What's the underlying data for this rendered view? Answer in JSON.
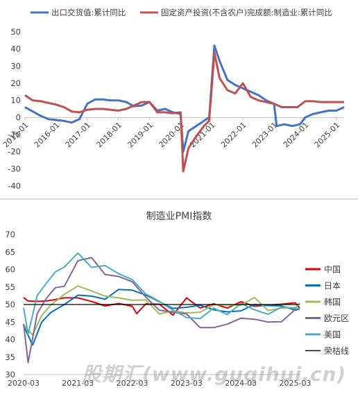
{
  "chart_data": [
    {
      "type": "line",
      "title": "",
      "xlabel": "",
      "ylabel": "",
      "ylim": [
        -40,
        50
      ],
      "yticks": [
        -40,
        -30,
        -20,
        -10,
        0,
        10,
        20,
        30,
        40,
        50
      ],
      "x_tick_labels": [
        "2015-01",
        "2016-01",
        "2017-01",
        "2018-01",
        "2019-01",
        "2020-01",
        "2021-01",
        "2022-01",
        "2023-01",
        "2024-01",
        "2025-01"
      ],
      "x_range": [
        "2015-01",
        "2025-04"
      ],
      "legend": "top",
      "grid": false,
      "series": [
        {
          "name": "出口交货值:累计同比",
          "color": "#4472C4",
          "points": [
            [
              "2015-01",
              6
            ],
            [
              "2015-04",
              3.5
            ],
            [
              "2015-07",
              1
            ],
            [
              "2015-10",
              -1
            ],
            [
              "2016-01",
              -1.5
            ],
            [
              "2016-04",
              -2
            ],
            [
              "2016-07",
              -3
            ],
            [
              "2016-10",
              -1
            ],
            [
              "2017-01",
              8
            ],
            [
              "2017-04",
              10.5
            ],
            [
              "2017-07",
              10.5
            ],
            [
              "2017-10",
              10
            ],
            [
              "2018-01",
              10
            ],
            [
              "2018-04",
              9
            ],
            [
              "2018-07",
              6.5
            ],
            [
              "2018-10",
              7
            ],
            [
              "2019-01",
              9
            ],
            [
              "2019-04",
              4
            ],
            [
              "2019-07",
              5
            ],
            [
              "2019-10",
              3
            ],
            [
              "2020-01",
              2
            ],
            [
              "2020-02",
              -20
            ],
            [
              "2020-04",
              -8
            ],
            [
              "2020-07",
              -5
            ],
            [
              "2020-10",
              -2
            ],
            [
              "2020-12",
              0
            ],
            [
              "2021-02",
              42
            ],
            [
              "2021-04",
              33
            ],
            [
              "2021-07",
              22
            ],
            [
              "2021-10",
              19
            ],
            [
              "2022-01",
              17
            ],
            [
              "2022-04",
              15
            ],
            [
              "2022-07",
              13
            ],
            [
              "2022-10",
              10
            ],
            [
              "2023-01",
              8
            ],
            [
              "2023-02",
              -5
            ],
            [
              "2023-05",
              -4
            ],
            [
              "2023-08",
              -5
            ],
            [
              "2023-11",
              -4
            ],
            [
              "2024-01",
              0
            ],
            [
              "2024-04",
              2
            ],
            [
              "2024-07",
              3
            ],
            [
              "2024-10",
              4
            ],
            [
              "2025-01",
              4
            ],
            [
              "2025-04",
              6
            ]
          ]
        },
        {
          "name": "固定资产投资(不含农户)完成额:制造业:累计同比",
          "color": "#C0504D",
          "points": [
            [
              "2015-01",
              13
            ],
            [
              "2015-04",
              10
            ],
            [
              "2015-07",
              9.5
            ],
            [
              "2015-10",
              8.5
            ],
            [
              "2016-01",
              7.5
            ],
            [
              "2016-04",
              6
            ],
            [
              "2016-07",
              3.5
            ],
            [
              "2016-10",
              3
            ],
            [
              "2017-01",
              4.5
            ],
            [
              "2017-04",
              5
            ],
            [
              "2017-07",
              5
            ],
            [
              "2017-10",
              4.5
            ],
            [
              "2018-01",
              4
            ],
            [
              "2018-04",
              5
            ],
            [
              "2018-07",
              7
            ],
            [
              "2018-10",
              9
            ],
            [
              "2019-01",
              9
            ],
            [
              "2019-04",
              3
            ],
            [
              "2019-07",
              3
            ],
            [
              "2019-10",
              2.5
            ],
            [
              "2020-01",
              3
            ],
            [
              "2020-02",
              -31.5
            ],
            [
              "2020-04",
              -18
            ],
            [
              "2020-07",
              -11
            ],
            [
              "2020-10",
              -5
            ],
            [
              "2020-12",
              -2
            ],
            [
              "2021-02",
              38
            ],
            [
              "2021-04",
              23
            ],
            [
              "2021-07",
              16
            ],
            [
              "2021-10",
              14
            ],
            [
              "2022-01",
              20
            ],
            [
              "2022-04",
              12
            ],
            [
              "2022-07",
              10
            ],
            [
              "2022-10",
              9
            ],
            [
              "2023-01",
              8
            ],
            [
              "2023-04",
              6
            ],
            [
              "2023-07",
              6
            ],
            [
              "2023-10",
              6
            ],
            [
              "2024-01",
              9.5
            ],
            [
              "2024-04",
              9.5
            ],
            [
              "2024-07",
              9
            ],
            [
              "2024-10",
              9
            ],
            [
              "2025-01",
              9
            ],
            [
              "2025-04",
              9
            ]
          ]
        }
      ]
    },
    {
      "type": "line",
      "title": "制造业PMI指数",
      "xlabel": "",
      "ylabel": "",
      "ylim": [
        30,
        70
      ],
      "yticks": [
        30,
        35,
        40,
        45,
        50,
        55,
        60,
        65,
        70
      ],
      "x_tick_labels": [
        "2020-03",
        "2021-03",
        "2022-03",
        "2023-03",
        "2024-03",
        "2025-03"
      ],
      "x_range": [
        "2020-03",
        "2025-04"
      ],
      "legend": "right",
      "grid": false,
      "series": [
        {
          "name": "中国",
          "color": "#E00000",
          "points": [
            [
              "2020-03",
              52
            ],
            [
              "2020-04",
              51
            ],
            [
              "2020-06",
              50.9
            ],
            [
              "2020-08",
              51
            ],
            [
              "2020-10",
              51.4
            ],
            [
              "2020-12",
              51.9
            ],
            [
              "2021-03",
              51.9
            ],
            [
              "2021-06",
              50.9
            ],
            [
              "2021-09",
              49.6
            ],
            [
              "2021-12",
              50.3
            ],
            [
              "2022-03",
              49.5
            ],
            [
              "2022-04",
              47.4
            ],
            [
              "2022-06",
              50.2
            ],
            [
              "2022-09",
              50.1
            ],
            [
              "2022-12",
              47
            ],
            [
              "2023-03",
              51.9
            ],
            [
              "2023-06",
              49
            ],
            [
              "2023-09",
              50.2
            ],
            [
              "2023-12",
              49
            ],
            [
              "2024-03",
              50.8
            ],
            [
              "2024-06",
              49.5
            ],
            [
              "2024-09",
              49.8
            ],
            [
              "2024-12",
              50.1
            ],
            [
              "2025-03",
              50.5
            ],
            [
              "2025-04",
              49
            ]
          ]
        },
        {
          "name": "日本",
          "color": "#0070C0",
          "points": [
            [
              "2020-03",
              44
            ],
            [
              "2020-05",
              38.4
            ],
            [
              "2020-07",
              45
            ],
            [
              "2020-09",
              47.7
            ],
            [
              "2020-12",
              50
            ],
            [
              "2021-03",
              52.7
            ],
            [
              "2021-06",
              52.4
            ],
            [
              "2021-09",
              51.5
            ],
            [
              "2021-12",
              54.3
            ],
            [
              "2022-03",
              54.1
            ],
            [
              "2022-06",
              52.7
            ],
            [
              "2022-09",
              50.8
            ],
            [
              "2022-12",
              48.9
            ],
            [
              "2023-03",
              49.2
            ],
            [
              "2023-06",
              49.8
            ],
            [
              "2023-09",
              48.5
            ],
            [
              "2023-12",
              47.9
            ],
            [
              "2024-03",
              48.2
            ],
            [
              "2024-06",
              50
            ],
            [
              "2024-09",
              49.7
            ],
            [
              "2024-12",
              49.6
            ],
            [
              "2025-03",
              48.4
            ],
            [
              "2025-04",
              48.7
            ]
          ]
        },
        {
          "name": "韩国",
          "color": "#9BBB59",
          "points": [
            [
              "2020-03",
              44.2
            ],
            [
              "2020-05",
              41.3
            ],
            [
              "2020-07",
              46.9
            ],
            [
              "2020-09",
              49.8
            ],
            [
              "2020-12",
              52.9
            ],
            [
              "2021-03",
              55.3
            ],
            [
              "2021-06",
              53.9
            ],
            [
              "2021-09",
              52.4
            ],
            [
              "2021-12",
              51.9
            ],
            [
              "2022-03",
              51.2
            ],
            [
              "2022-06",
              51.3
            ],
            [
              "2022-09",
              47.3
            ],
            [
              "2022-12",
              48.2
            ],
            [
              "2023-03",
              47.6
            ],
            [
              "2023-06",
              47.8
            ],
            [
              "2023-09",
              49.9
            ],
            [
              "2023-12",
              49.9
            ],
            [
              "2024-03",
              49.8
            ],
            [
              "2024-06",
              52
            ],
            [
              "2024-09",
              48.3
            ],
            [
              "2024-12",
              49
            ],
            [
              "2025-03",
              49.1
            ],
            [
              "2025-04",
              50.5
            ]
          ]
        },
        {
          "name": "欧元区",
          "color": "#8064A2",
          "points": [
            [
              "2020-03",
              44.5
            ],
            [
              "2020-04",
              33.4
            ],
            [
              "2020-06",
              47.4
            ],
            [
              "2020-08",
              51.7
            ],
            [
              "2020-10",
              54.8
            ],
            [
              "2020-12",
              55.2
            ],
            [
              "2021-03",
              62.5
            ],
            [
              "2021-06",
              63.4
            ],
            [
              "2021-09",
              58.6
            ],
            [
              "2021-12",
              58
            ],
            [
              "2022-03",
              56.5
            ],
            [
              "2022-06",
              52.1
            ],
            [
              "2022-09",
              48.4
            ],
            [
              "2022-12",
              47.8
            ],
            [
              "2023-03",
              47.3
            ],
            [
              "2023-06",
              43.4
            ],
            [
              "2023-09",
              43.4
            ],
            [
              "2023-12",
              44.4
            ],
            [
              "2024-03",
              46.1
            ],
            [
              "2024-06",
              45.8
            ],
            [
              "2024-09",
              45
            ],
            [
              "2024-12",
              45.1
            ],
            [
              "2025-03",
              48.6
            ],
            [
              "2025-04",
              49
            ]
          ]
        },
        {
          "name": "美国",
          "color": "#4BACC6",
          "points": [
            [
              "2020-03",
              49.1
            ],
            [
              "2020-04",
              41.5
            ],
            [
              "2020-06",
              52.6
            ],
            [
              "2020-08",
              56
            ],
            [
              "2020-10",
              59.3
            ],
            [
              "2020-12",
              60.7
            ],
            [
              "2021-03",
              64.7
            ],
            [
              "2021-06",
              60.6
            ],
            [
              "2021-09",
              61.1
            ],
            [
              "2021-12",
              58.8
            ],
            [
              "2022-03",
              57.1
            ],
            [
              "2022-06",
              53
            ],
            [
              "2022-09",
              50.9
            ],
            [
              "2022-12",
              48.4
            ],
            [
              "2023-03",
              46.3
            ],
            [
              "2023-06",
              46
            ],
            [
              "2023-09",
              49
            ],
            [
              "2023-12",
              47.1
            ],
            [
              "2024-03",
              50.3
            ],
            [
              "2024-06",
              48.5
            ],
            [
              "2024-09",
              47.2
            ],
            [
              "2024-12",
              49.3
            ],
            [
              "2025-03",
              49
            ],
            [
              "2025-04",
              48.7
            ]
          ]
        },
        {
          "name": "荣枯线",
          "color": "#000000",
          "points": [
            [
              "2020-03",
              50
            ],
            [
              "2025-04",
              50
            ]
          ]
        }
      ]
    }
  ],
  "watermark": "股期汇(www.guqihui.cn)"
}
